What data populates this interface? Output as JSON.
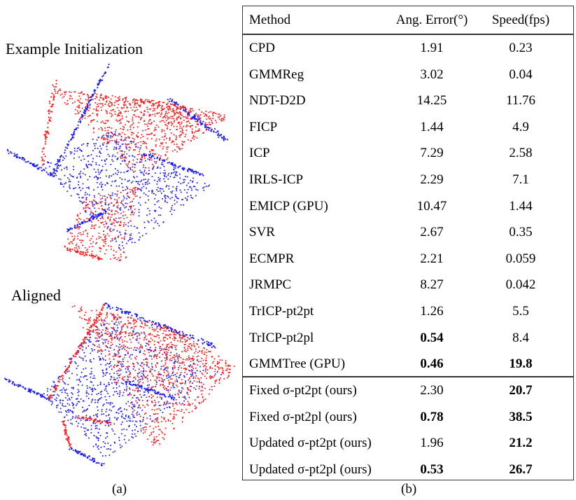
{
  "panel_a": {
    "label_init": "Example Initialization",
    "label_aligned": "Aligned",
    "caption": "(a)",
    "colors": {
      "source": "#ff1a1a",
      "target": "#1a1aff"
    }
  },
  "panel_b": {
    "caption": "(b)",
    "headers": [
      "Method",
      "Ang. Error(°)",
      "Speed(fps)"
    ],
    "rows": [
      {
        "method": "CPD",
        "error": "1.91",
        "speed": "0.23"
      },
      {
        "method": "GMMReg",
        "error": "3.02",
        "speed": "0.04"
      },
      {
        "method": "NDT-D2D",
        "error": "14.25",
        "speed": "11.76"
      },
      {
        "method": "FICP",
        "error": "1.44",
        "speed": "4.9"
      },
      {
        "method": "ICP",
        "error": "7.29",
        "speed": "2.58"
      },
      {
        "method": "IRLS-ICP",
        "error": "2.29",
        "speed": "7.1"
      },
      {
        "method": "EMICP  (GPU)",
        "error": "10.47",
        "speed": "1.44"
      },
      {
        "method": "SVR",
        "error": "2.67",
        "speed": "0.35"
      },
      {
        "method": "ECMPR",
        "error": "2.21",
        "speed": "0.059"
      },
      {
        "method": "JRMPC",
        "error": "8.27",
        "speed": "0.042"
      },
      {
        "method": "TrICP-pt2pt",
        "error": "1.26",
        "speed": "5.5"
      },
      {
        "method": "TrICP-pt2pl",
        "error": "0.54",
        "speed": "8.4",
        "bold_error": true
      },
      {
        "method": "GMMTree  (GPU)",
        "error": "0.46",
        "speed": "19.8",
        "bold_error": true,
        "bold_speed": true
      }
    ],
    "ours": [
      {
        "method": "Fixed σ-pt2pt (ours)",
        "error": "2.30",
        "speed": "20.7",
        "bold_speed": true
      },
      {
        "method": "Fixed σ-pt2pl (ours)",
        "error": "0.78",
        "speed": "38.5",
        "bold_error": true,
        "bold_speed": true
      },
      {
        "method": "Updated σ-pt2pt (ours)",
        "error": "1.96",
        "speed": "21.2",
        "bold_speed": true
      },
      {
        "method": "Updated σ-pt2pl (ours)",
        "error": "0.53",
        "speed": "26.7",
        "bold_error": true,
        "bold_speed": true
      }
    ]
  }
}
